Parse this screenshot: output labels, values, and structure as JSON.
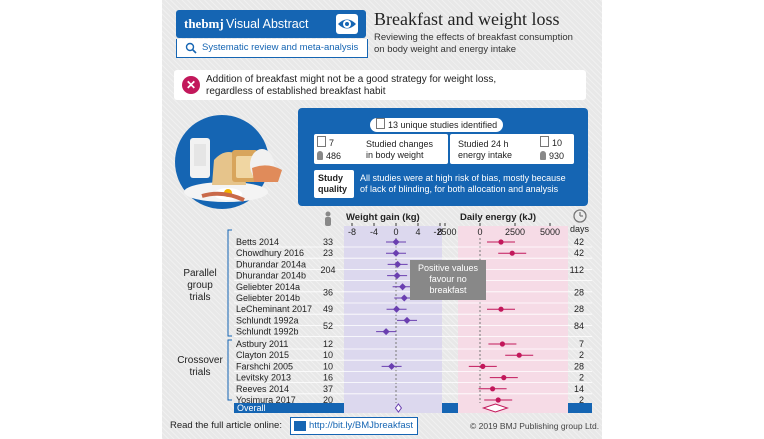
{
  "header": {
    "brand_logo": "thebmj",
    "brand_label": "Visual Abstract",
    "study_type": "Systematic review and meta-analysis",
    "title": "Breakfast and weight loss",
    "subtitle_line1": "Reviewing the effects of breakfast consumption",
    "subtitle_line2": "on body weight and energy intake"
  },
  "key_message": {
    "line1": "Addition of breakfast might not be a good strategy for weight loss,",
    "line2": "regardless of established breakfast habit"
  },
  "studies": {
    "unique": "13 unique studies identified",
    "weight_studies": "7",
    "weight_participants": "486",
    "weight_label_line1": "Studied changes",
    "weight_label_line2": "in body weight",
    "energy_studies": "10",
    "energy_participants": "930",
    "energy_label_line1": "Studied 24 h",
    "energy_label_line2": "energy intake",
    "quality_heading_line1": "Study",
    "quality_heading_line2": "quality",
    "quality_text_line1": "All studies were at high risk of bias, mostly because",
    "quality_text_line2": "of lack of blinding, for both allocation and analysis"
  },
  "forest": {
    "weight_header": "Weight gain (kg)",
    "energy_header": "Daily energy (kJ)",
    "days_header": "days",
    "weight_ticks": [
      "-8",
      "-4",
      "0",
      "4",
      "8"
    ],
    "energy_ticks": [
      "-2500",
      "0",
      "2500",
      "5000"
    ],
    "note_line1": "Positive values",
    "note_line2": "favour no",
    "note_line3": "breakfast",
    "parallel_label_line1": "Parallel",
    "parallel_label_line2": "group",
    "parallel_label_line3": "trials",
    "crossover_label_line1": "Crossover",
    "crossover_label_line2": "trials",
    "overall_label": "Overall",
    "parallel": [
      {
        "study": "Betts 2014",
        "n": "33",
        "days": "42",
        "weight": 0,
        "energy": 1500
      },
      {
        "study": "Chowdhury 2016",
        "n": "23",
        "days": "42",
        "weight": 0,
        "energy": 2300
      },
      {
        "study": "Dhurandar 2014a",
        "n": "",
        "days": "",
        "weight": 0.3,
        "energy": null
      },
      {
        "study": "Dhurandar 2014b",
        "n": "",
        "days": "",
        "weight": 0.2,
        "energy": null
      },
      {
        "study": "Geliebter 2014a",
        "n": "",
        "days": "",
        "weight": 1.2,
        "energy": null
      },
      {
        "study": "Geliebter 2014b",
        "n": "",
        "days": "",
        "weight": 1.5,
        "energy": null
      },
      {
        "study": "LeCheminant 2017",
        "n": "49",
        "days": "28",
        "weight": 0.1,
        "energy": 1500
      },
      {
        "study": "Schlundt 1992a",
        "n": "",
        "days": "",
        "weight": 2.0,
        "energy": null
      },
      {
        "study": "Schlundt 1992b",
        "n": "",
        "days": "",
        "weight": -1.8,
        "energy": null
      }
    ],
    "parallel_groups": [
      {
        "n": "204",
        "days": "112"
      },
      {
        "n": "36",
        "days": "28"
      },
      {
        "n": "52",
        "days": "84"
      }
    ],
    "crossover": [
      {
        "study": "Astbury 2011",
        "n": "12",
        "days": "7",
        "weight": null,
        "energy": 1600
      },
      {
        "study": "Clayton 2015",
        "n": "10",
        "days": "2",
        "weight": null,
        "energy": 2800
      },
      {
        "study": "Farshchi 2005",
        "n": "10",
        "days": "28",
        "weight": -0.8,
        "energy": 200
      },
      {
        "study": "Levitsky 2013",
        "n": "16",
        "days": "2",
        "weight": null,
        "energy": 1700
      },
      {
        "study": "Reeves 2014",
        "n": "37",
        "days": "14",
        "weight": null,
        "energy": 900
      },
      {
        "study": "Yosimura 2017",
        "n": "20",
        "days": "2",
        "weight": null,
        "energy": 1300
      }
    ],
    "overall_weight": 0.44,
    "overall_energy": 1100
  },
  "footer": {
    "read_more": "Read the full article online:",
    "link": "http://bit.ly/BMJbreakfast",
    "copyright": "© 2019 BMJ Publishing group Ltd."
  },
  "colors": {
    "brand_blue": "#1565b3",
    "weight_purple": "#6a3fb0",
    "energy_magenta": "#c2185b",
    "weight_bg": "#dcd8ee",
    "energy_bg": "#f6dbe6"
  }
}
